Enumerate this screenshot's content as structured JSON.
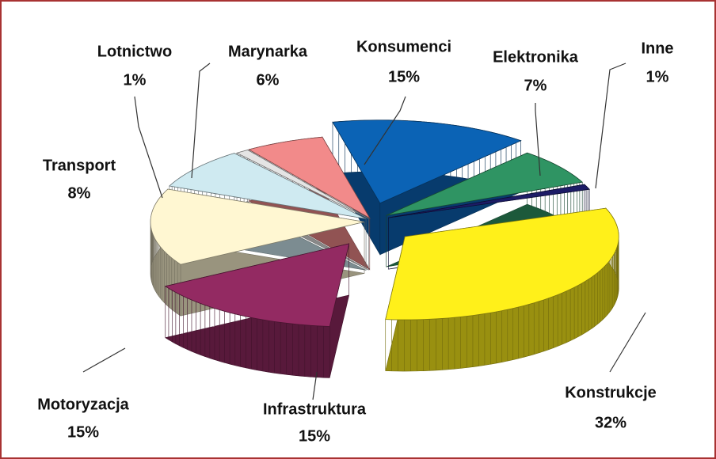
{
  "chart_data": {
    "type": "pie",
    "categories": [
      "Lotnictwo",
      "Marynarka",
      "Konsumenci",
      "Elektronika",
      "Inne",
      "Konstrukcje",
      "Infrastruktura",
      "Motoryzacja",
      "Transport"
    ],
    "values": [
      1,
      6,
      15,
      7,
      1,
      32,
      15,
      15,
      8
    ],
    "value_labels": [
      "1%",
      "6%",
      "15%",
      "7%",
      "1%",
      "32%",
      "15%",
      "15%",
      "8%"
    ],
    "colors": [
      "#e4e4e4",
      "#f28a8a",
      "#0b63b5",
      "#2f9463",
      "#1c1c66",
      "#fff01a",
      "#932a62",
      "#fff7d2",
      "#cfeaf1"
    ]
  }
}
